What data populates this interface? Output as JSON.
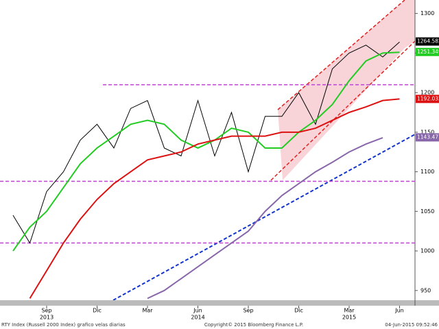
{
  "chart_data": {
    "type": "line",
    "categories": [
      null,
      null,
      "Sep",
      null,
      null,
      "Dic",
      null,
      null,
      "Mar",
      null,
      null,
      "Jun",
      null,
      null,
      "Sep",
      null,
      null,
      "Dic",
      null,
      null,
      "Mar",
      null,
      null,
      "Jun"
    ],
    "year_labels": [
      "2013",
      "2014",
      "2015"
    ],
    "series": [
      {
        "color": "#000000",
        "values": [
          1045,
          1010,
          1075,
          1100,
          1140,
          1160,
          1130,
          1180,
          1190,
          1130,
          1120,
          1190,
          1120,
          1175,
          1100,
          1170,
          1170,
          1200,
          1160,
          1230,
          1250,
          1260,
          1245,
          1264
        ],
        "last": 1264.582
      },
      {
        "color": "#22cc22",
        "values": [
          1000,
          1030,
          1050,
          1080,
          1110,
          1130,
          1145,
          1160,
          1165,
          1160,
          1140,
          1130,
          1140,
          1155,
          1150,
          1130,
          1130,
          1150,
          1165,
          1185,
          1215,
          1240,
          1250,
          1251
        ],
        "last": 1251.349
      },
      {
        "color": "#dd1111",
        "values": [
          null,
          940,
          975,
          1010,
          1040,
          1065,
          1085,
          1100,
          1115,
          1120,
          1125,
          1135,
          1140,
          1145,
          1145,
          1145,
          1150,
          1150,
          1155,
          1165,
          1175,
          1182,
          1190,
          1192
        ],
        "last": 1192.032
      },
      {
        "color": "#8866aa",
        "values": [
          null,
          null,
          null,
          null,
          null,
          null,
          null,
          null,
          940,
          950,
          965,
          980,
          995,
          1010,
          1025,
          1050,
          1070,
          1085,
          1100,
          1112,
          1125,
          1135,
          1143,
          null
        ],
        "last": 1143.477
      }
    ],
    "reference_lines": [
      1210,
      1088,
      1010
    ],
    "reference_color": "#bb44cc",
    "ylim": [
      936,
      1317
    ],
    "yticks": [
      950,
      1000,
      1050,
      1100,
      1150,
      1200,
      1250,
      1300
    ],
    "footer": {
      "left": "RTY Index (Russell 2000 Index) grafico velas diarias",
      "center": "Copyright© 2015 Bloomberg Finance L.P.",
      "right": "04-Jun-2015 09:52:46"
    }
  }
}
